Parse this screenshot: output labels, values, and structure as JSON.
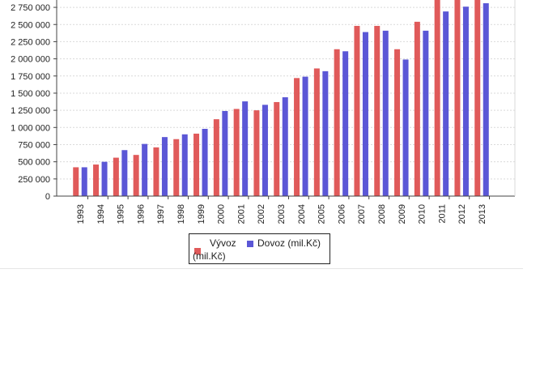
{
  "chart_data": {
    "type": "bar",
    "categories": [
      "1993",
      "1994",
      "1995",
      "1996",
      "1997",
      "1998",
      "1999",
      "2000",
      "2001",
      "2002",
      "2003",
      "2004",
      "2005",
      "2006",
      "2007",
      "2008",
      "2009",
      "2010",
      "2011",
      "2012",
      "2013"
    ],
    "series": [
      {
        "name": "Vývoz (mil.Kč)",
        "color": "#e05a5a",
        "values": [
          420000,
          460000,
          560000,
          600000,
          710000,
          830000,
          910000,
          1120000,
          1270000,
          1250000,
          1370000,
          1720000,
          1860000,
          2140000,
          2480000,
          2480000,
          2140000,
          2540000,
          2900000,
          2950000,
          3000000
        ]
      },
      {
        "name": "Dovoz (mil.Kč)",
        "color": "#5b57d6",
        "values": [
          420000,
          500000,
          670000,
          760000,
          860000,
          900000,
          980000,
          1240000,
          1380000,
          1330000,
          1440000,
          1740000,
          1820000,
          2110000,
          2390000,
          2410000,
          1990000,
          2410000,
          2690000,
          2760000,
          2810000
        ]
      }
    ],
    "y_ticks": [
      "0",
      "250 000",
      "500 000",
      "750 000",
      "1 000 000",
      "1 250 000",
      "1 500 000",
      "1 750 000",
      "2 000 000",
      "2 250 000",
      "2 500 000",
      "2 750 000"
    ],
    "ylim": [
      0,
      2875000
    ],
    "grid": true,
    "legend_position": "bottom"
  },
  "legend": {
    "export_label_line1": "Vývoz",
    "export_label_line2": "(mil.Kč)",
    "import_label": "Dovoz (mil.Kč)"
  }
}
